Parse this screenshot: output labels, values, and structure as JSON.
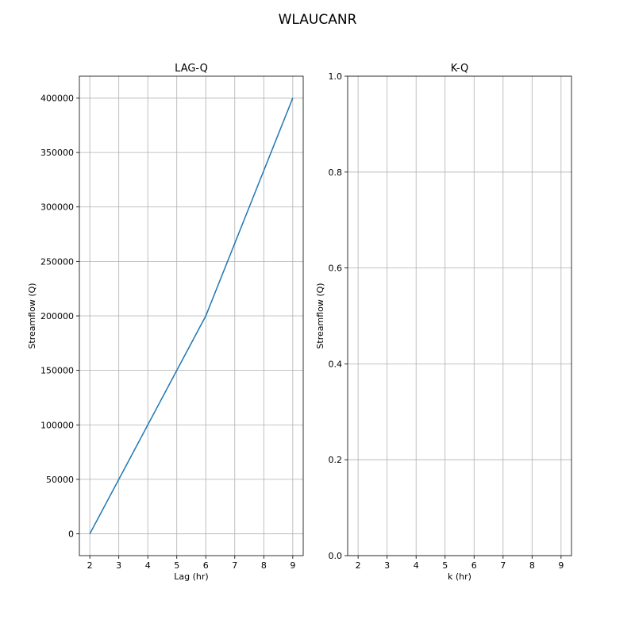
{
  "figure": {
    "suptitle": "WLAUCANR"
  },
  "chart_data": [
    {
      "type": "line",
      "title": "LAG-Q",
      "xlabel": "Lag (hr)",
      "ylabel": "Streamflow (Q)",
      "xlim": [
        1.64,
        9.36
      ],
      "ylim": [
        -20000,
        420000
      ],
      "xticks": [
        2,
        3,
        4,
        5,
        6,
        7,
        8,
        9
      ],
      "yticks": [
        0,
        50000,
        100000,
        150000,
        200000,
        250000,
        300000,
        350000,
        400000
      ],
      "grid": true,
      "series": [
        {
          "x": [
            2,
            6,
            9
          ],
          "y": [
            0,
            200000,
            400000
          ],
          "color": "#1f77b4"
        }
      ]
    },
    {
      "type": "line",
      "title": "K-Q",
      "xlabel": "k (hr)",
      "ylabel": "Streamflow (Q)",
      "xlim": [
        1.64,
        9.36
      ],
      "ylim": [
        0.0,
        1.0
      ],
      "xticks": [
        2,
        3,
        4,
        5,
        6,
        7,
        8,
        9
      ],
      "yticks": [
        0.0,
        0.2,
        0.4,
        0.6,
        0.8,
        1.0
      ],
      "ytick_labels": [
        "0.0",
        "0.2",
        "0.4",
        "0.6",
        "0.8",
        "1.0"
      ],
      "grid": true,
      "series": []
    }
  ]
}
